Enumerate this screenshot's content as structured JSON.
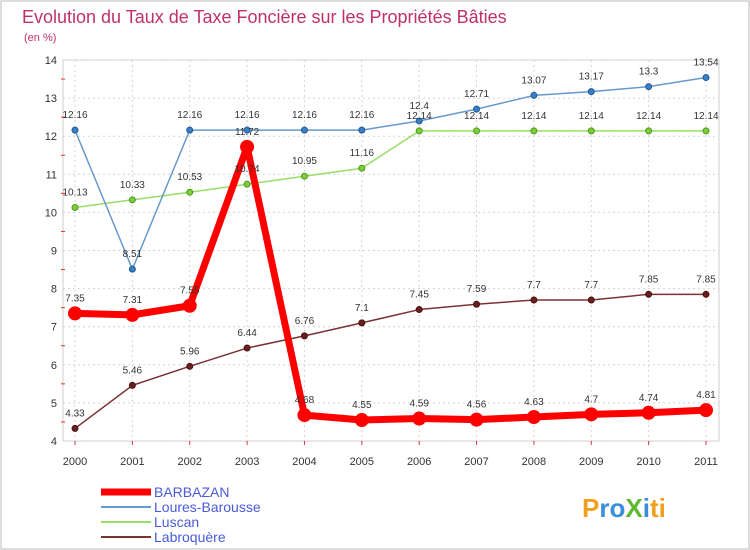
{
  "chart_data": {
    "type": "line",
    "title": "Evolution du Taux de Taxe Foncière sur les Propriétés Bâties",
    "subtitle": "(en %)",
    "x": [
      "2000",
      "2001",
      "2002",
      "2003",
      "2004",
      "2005",
      "2006",
      "2007",
      "2008",
      "2009",
      "2010",
      "2011"
    ],
    "ylim": [
      4,
      14
    ],
    "yticks": [
      4,
      5,
      6,
      7,
      8,
      9,
      10,
      11,
      12,
      13,
      14
    ],
    "grid": true,
    "legend_position": "bottom-left",
    "series": [
      {
        "name": "BARBAZAN",
        "color": "#ff0000",
        "values": [
          7.35,
          7.31,
          7.55,
          11.72,
          4.68,
          4.55,
          4.59,
          4.56,
          4.63,
          4.7,
          4.74,
          4.81
        ],
        "labels": [
          "7.35",
          "7.31",
          "7.55",
          "11.72",
          "4.68",
          "4.55",
          "4.59",
          "4.56",
          "4.63",
          "4.7",
          "4.74",
          "4.81"
        ]
      },
      {
        "name": "Loures-Barousse",
        "color": "#6699cc",
        "values": [
          12.16,
          8.51,
          12.16,
          12.16,
          12.16,
          12.16,
          12.4,
          12.71,
          13.07,
          13.17,
          13.3,
          13.54
        ],
        "labels": [
          "12.16",
          "8.51",
          "12.16",
          "12.16",
          "12.16",
          "12.16",
          "12.4",
          "12.71",
          "13.07",
          "13.17",
          "13.3",
          "13.54"
        ]
      },
      {
        "name": "Luscan",
        "color": "#99dd66",
        "values": [
          10.13,
          10.33,
          10.53,
          10.74,
          10.95,
          11.16,
          12.14,
          12.14,
          12.14,
          12.14,
          12.14,
          12.14
        ],
        "labels": [
          "10.13",
          "10.33",
          "10.53",
          "10.74",
          "10.95",
          "11.16",
          "12.14",
          "12.14",
          "12.14",
          "12.14",
          "12.14",
          "12.14"
        ]
      },
      {
        "name": "Labroquère",
        "color": "#7a3333",
        "values": [
          4.33,
          5.46,
          5.96,
          6.44,
          6.76,
          7.1,
          7.45,
          7.59,
          7.7,
          7.7,
          7.85,
          7.85
        ],
        "labels": [
          "4.33",
          "5.46",
          "5.96",
          "6.44",
          "6.76",
          "7.1",
          "7.45",
          "7.59",
          "7.7",
          "7.7",
          "7.85",
          "7.85"
        ]
      }
    ]
  },
  "logo": {
    "text": "ProXiti"
  }
}
